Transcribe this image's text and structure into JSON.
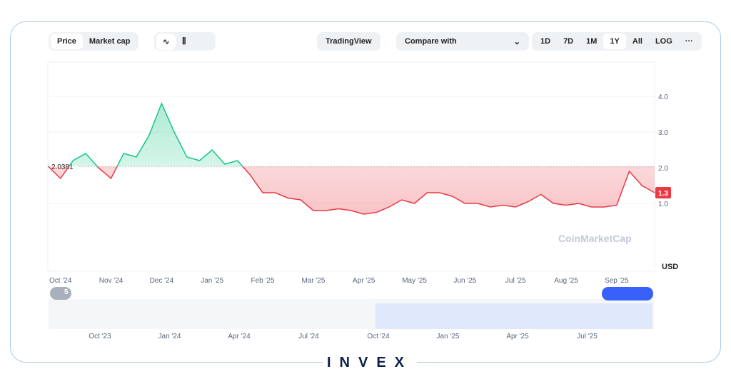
{
  "toolbar": {
    "tabs": [
      "Price",
      "Market cap"
    ],
    "tradingview": "TradingView",
    "compare": "Compare with",
    "ranges": [
      "1D",
      "7D",
      "1M",
      "1Y",
      "All",
      "LOG"
    ],
    "more": "···"
  },
  "chart_data": {
    "type": "line",
    "categories": [
      null,
      "Oct '24",
      null,
      null,
      null,
      "Nov '24",
      null,
      null,
      null,
      "Dec '24",
      null,
      null,
      null,
      "Jan '25",
      null,
      null,
      null,
      "Feb '25",
      null,
      null,
      null,
      "Mar '25",
      null,
      null,
      null,
      "Apr '25",
      null,
      null,
      null,
      "May '25",
      null,
      null,
      null,
      "Jun '25",
      null,
      null,
      null,
      "Jul '25",
      null,
      null,
      null,
      "Aug '25",
      null,
      null,
      null,
      "Sep '25",
      null,
      null,
      null
    ],
    "series": [
      {
        "values": [
          2.05,
          1.7,
          2.2,
          2.4,
          2.0,
          1.7,
          2.4,
          2.3,
          2.9,
          3.8,
          3.0,
          2.3,
          2.2,
          2.5,
          2.1,
          2.2,
          1.8,
          1.3,
          1.3,
          1.15,
          1.1,
          0.8,
          0.8,
          0.85,
          0.8,
          0.7,
          0.75,
          0.9,
          1.1,
          1.0,
          1.3,
          1.3,
          1.2,
          1.0,
          1.0,
          0.9,
          0.95,
          0.9,
          1.05,
          1.25,
          1.0,
          0.95,
          1.0,
          0.9,
          0.9,
          0.95,
          1.9,
          1.5,
          1.3
        ]
      }
    ],
    "baseline": 2.0381,
    "up_color": "#16c784",
    "down_color": "#ea3943",
    "last_price": 1.3,
    "unit": "USD",
    "watermark": "CoinMarketCap",
    "ylim": [
      -0.9,
      4.96
    ],
    "yticks": [
      {
        "value": 1,
        "label": "1.0"
      },
      {
        "value": 2,
        "label": "2.0"
      },
      {
        "value": 3,
        "label": "3.0"
      },
      {
        "value": 4,
        "label": "4.0"
      }
    ],
    "grid": true
  },
  "badge": "5",
  "navigator": {
    "labels": [
      "Oct '23",
      "Jan '24",
      "Apr '24",
      "Jul '24",
      "Oct '24",
      "Jan '25",
      "Apr '25",
      "Jul '25"
    ]
  },
  "brand": "INVEX"
}
